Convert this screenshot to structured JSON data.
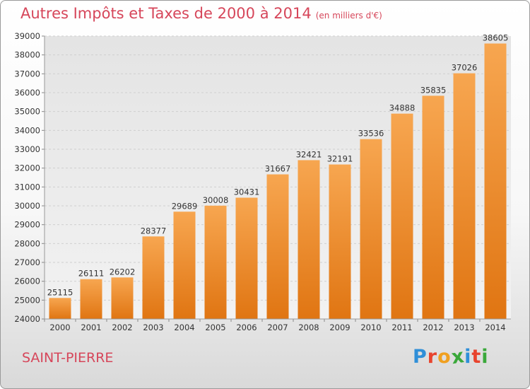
{
  "chart_data": {
    "type": "bar",
    "title": "Autres Impôts et Taxes de 2000 à 2014",
    "unit_label": "(en milliers d'€)",
    "categories": [
      "2000",
      "2001",
      "2002",
      "2003",
      "2004",
      "2005",
      "2006",
      "2007",
      "2008",
      "2009",
      "2010",
      "2011",
      "2012",
      "2013",
      "2014"
    ],
    "values": [
      25115,
      26111,
      26202,
      28377,
      29689,
      30008,
      30431,
      31667,
      32421,
      32191,
      33536,
      34888,
      35835,
      37026,
      38605
    ],
    "ylim": [
      24000,
      39000
    ],
    "yticks": [
      24000,
      25000,
      26000,
      27000,
      28000,
      29000,
      30000,
      31000,
      32000,
      33000,
      34000,
      35000,
      36000,
      37000,
      38000,
      39000
    ],
    "xlabel": "",
    "ylabel": "",
    "grid": true,
    "bar_color": "#f0892f"
  },
  "place_name": "SAINT-PIERRE",
  "logo": {
    "text": "Proxiti",
    "letters": [
      {
        "ch": "P",
        "color": "#2f8fd8"
      },
      {
        "ch": "r",
        "color": "#e8442e"
      },
      {
        "ch": "o",
        "color": "#f0a020"
      },
      {
        "ch": "x",
        "color": "#3aa83a"
      },
      {
        "ch": "i",
        "color": "#2f8fd8"
      },
      {
        "ch": "t",
        "color": "#e8442e"
      },
      {
        "ch": "i",
        "color": "#3aa83a"
      }
    ]
  }
}
